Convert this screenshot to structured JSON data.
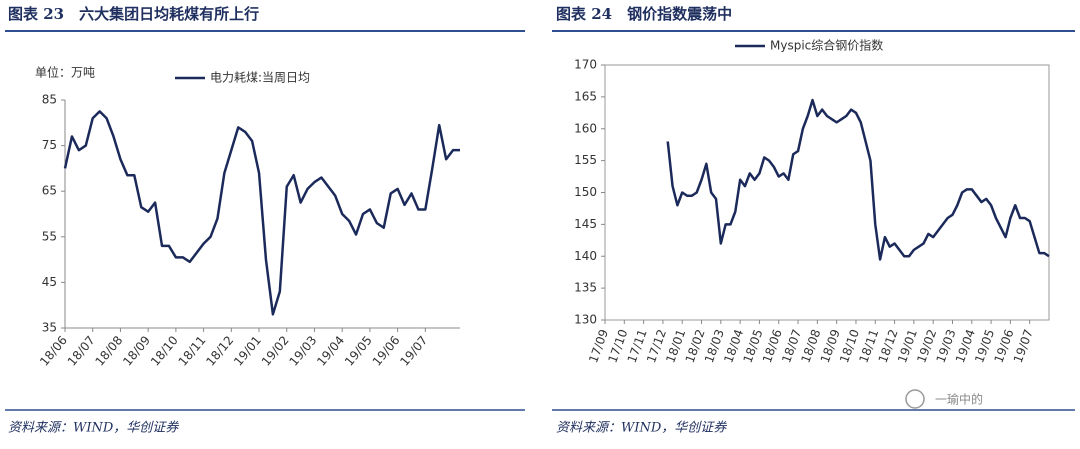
{
  "chart_data": [
    {
      "type": "line",
      "title": "图表 23　六大集团日均耗煤有所上行",
      "unit_label": "单位：万吨",
      "source": "资料来源：WIND，华创证券",
      "categories": [
        "18/06",
        null,
        null,
        null,
        "18/07",
        null,
        null,
        null,
        "18/08",
        null,
        null,
        null,
        "18/09",
        null,
        null,
        null,
        "18/10",
        null,
        null,
        null,
        "18/11",
        null,
        null,
        null,
        "18/12",
        null,
        null,
        null,
        "19/01",
        null,
        null,
        null,
        "19/02",
        null,
        null,
        null,
        "19/03",
        null,
        null,
        null,
        "19/04",
        null,
        null,
        null,
        "19/05",
        null,
        null,
        null,
        "19/06",
        null,
        null,
        null,
        "19/07",
        null,
        null,
        null,
        null,
        null
      ],
      "series": [
        {
          "name": "电力耗煤:当周日均",
          "color": "#1b2a5a",
          "values": [
            70,
            77,
            74,
            75,
            81,
            82.5,
            81,
            77,
            72,
            68.5,
            68.5,
            61.5,
            60.5,
            62.5,
            53,
            53,
            50.5,
            50.5,
            49.5,
            51.5,
            53.5,
            55,
            59,
            69,
            74,
            79,
            78,
            76,
            69,
            50,
            38,
            43,
            66,
            68.5,
            62.5,
            65.5,
            67,
            68,
            66,
            64,
            60,
            58.5,
            55.5,
            60,
            61,
            58,
            57,
            64.5,
            65.5,
            62,
            64.5,
            61,
            61,
            70,
            79.5,
            72,
            74,
            74
          ]
        }
      ],
      "ylim": [
        35,
        85
      ],
      "yticks": [
        35,
        45,
        55,
        65,
        75,
        85
      ]
    },
    {
      "type": "line",
      "title": "图表 24　钢价指数震荡中",
      "source": "资料来源：WIND，华创证券",
      "categories": [
        "17/09",
        null,
        null,
        null,
        "17/10",
        null,
        null,
        null,
        "17/11",
        null,
        null,
        null,
        "17/12",
        null,
        null,
        null,
        "18/01",
        null,
        null,
        null,
        "18/02",
        null,
        null,
        null,
        "18/03",
        null,
        null,
        null,
        "18/04",
        null,
        null,
        null,
        "18/05",
        null,
        null,
        null,
        "18/06",
        null,
        null,
        null,
        "18/07",
        null,
        null,
        null,
        "18/08",
        null,
        null,
        null,
        "18/09",
        null,
        null,
        null,
        "18/10",
        null,
        null,
        null,
        "18/11",
        null,
        null,
        null,
        "18/12",
        null,
        null,
        null,
        "19/01",
        null,
        null,
        null,
        "19/02",
        null,
        null,
        null,
        "19/03",
        null,
        null,
        null,
        "19/04",
        null,
        null,
        null,
        "19/05",
        null,
        null,
        null,
        "19/06",
        null,
        null,
        null,
        "19/07",
        null,
        null,
        null,
        null
      ],
      "series": [
        {
          "name": "Myspic综合钢价指数",
          "color": "#1b2a5a",
          "values": [
            null,
            null,
            null,
            null,
            null,
            null,
            null,
            null,
            null,
            null,
            null,
            null,
            null,
            158,
            151,
            148,
            150,
            149.5,
            149.5,
            150,
            152,
            154.5,
            150,
            149,
            142,
            145,
            145,
            147,
            152,
            151,
            153,
            152,
            153,
            155.5,
            155,
            154,
            152.5,
            153,
            152,
            156,
            156.5,
            160,
            162,
            164.5,
            162,
            163,
            162,
            161.5,
            161,
            161.5,
            162,
            163,
            162.5,
            161,
            158,
            155,
            145,
            139.5,
            143,
            141.5,
            142,
            141,
            140,
            140,
            141,
            141.5,
            142,
            143.5,
            143,
            144,
            145,
            146,
            146.5,
            148,
            150,
            150.5,
            150.5,
            149.5,
            148.5,
            149,
            148,
            146,
            144.5,
            143,
            146,
            148,
            146,
            146,
            145.5,
            143,
            140.5,
            140.5,
            140
          ]
        }
      ],
      "ylim": [
        130,
        170
      ],
      "yticks": [
        130,
        135,
        140,
        145,
        150,
        155,
        160,
        165,
        170
      ],
      "frame": true
    }
  ],
  "watermark": "一瑜中的"
}
